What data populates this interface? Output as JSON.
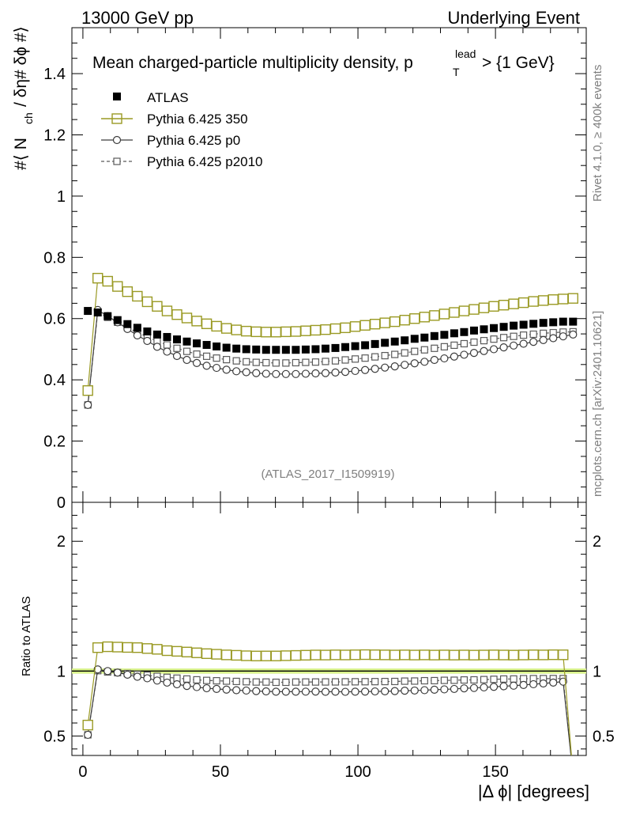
{
  "header": {
    "left": "13000 GeV pp",
    "right": "Underlying Event"
  },
  "side_labels": {
    "rivet": "Rivet 4.1.0, ≥ 400k events",
    "mcplots": "mcplots.cern.ch [arXiv:2401.10621]"
  },
  "chart_data": [
    {
      "type": "line",
      "panel": "main",
      "title_main": "Mean charged-particle multiplicity density, p",
      "title_sup": "lead",
      "title_sub": "T",
      "title_tail": "> {1 GeV}",
      "ylabel": "#⟨ N",
      "ylabel_sub": "ch",
      "ylabel_tail": "/ δη# δϕ #⟩",
      "watermark": "(ATLAS_2017_I1509919)",
      "xlim": [
        -4,
        183
      ],
      "ylim": [
        0,
        1.55
      ],
      "yticks": [
        0,
        0.2,
        0.4,
        0.6,
        0.8,
        1,
        1.2,
        1.4
      ],
      "ytick_labels": [
        "0",
        "0.2",
        "0.4",
        "0.6",
        "0.8",
        "1",
        "1.2",
        "1.4"
      ],
      "legend_position": "top-left",
      "x": [
        1.8,
        5.4,
        9.0,
        12.6,
        16.2,
        19.8,
        23.4,
        27.0,
        30.6,
        34.2,
        37.8,
        41.4,
        45.0,
        48.6,
        52.2,
        55.8,
        59.4,
        63.0,
        66.6,
        70.2,
        73.8,
        77.4,
        81.0,
        84.6,
        88.2,
        91.8,
        95.4,
        99.0,
        102.6,
        106.2,
        109.8,
        113.4,
        117.0,
        120.6,
        124.2,
        127.8,
        131.4,
        135.0,
        138.6,
        142.2,
        145.8,
        149.4,
        153.0,
        156.6,
        160.2,
        163.8,
        167.4,
        171.0,
        174.6,
        178.2
      ],
      "series": [
        {
          "name": "ATLAS",
          "style": "data",
          "color": "#000000",
          "values": [
            0.625,
            0.62,
            0.608,
            0.595,
            0.582,
            0.57,
            0.558,
            0.548,
            0.54,
            0.532,
            0.525,
            0.519,
            0.514,
            0.509,
            0.505,
            0.502,
            0.5,
            0.499,
            0.498,
            0.498,
            0.498,
            0.498,
            0.499,
            0.5,
            0.502,
            0.504,
            0.507,
            0.51,
            0.513,
            0.517,
            0.521,
            0.525,
            0.529,
            0.534,
            0.538,
            0.543,
            0.547,
            0.552,
            0.556,
            0.561,
            0.565,
            0.569,
            0.573,
            0.577,
            0.58,
            0.583,
            0.586,
            0.588,
            0.59,
            0.59
          ]
        },
        {
          "name": "Pythia 6.425 350",
          "style": "open-square",
          "color": "#9a9a24",
          "values": [
            0.365,
            0.732,
            0.722,
            0.705,
            0.688,
            0.673,
            0.655,
            0.64,
            0.625,
            0.613,
            0.602,
            0.592,
            0.583,
            0.575,
            0.568,
            0.563,
            0.559,
            0.557,
            0.556,
            0.556,
            0.557,
            0.558,
            0.56,
            0.562,
            0.564,
            0.567,
            0.57,
            0.574,
            0.578,
            0.582,
            0.586,
            0.59,
            0.595,
            0.6,
            0.605,
            0.61,
            0.615,
            0.62,
            0.625,
            0.63,
            0.635,
            0.64,
            0.644,
            0.648,
            0.652,
            0.656,
            0.659,
            0.662,
            0.664,
            0.666
          ]
        },
        {
          "name": "Pythia 6.425 p0",
          "style": "open-circle",
          "color": "#3c3c3c",
          "values": [
            0.318,
            0.628,
            0.608,
            0.588,
            0.566,
            0.545,
            0.527,
            0.508,
            0.492,
            0.478,
            0.465,
            0.455,
            0.446,
            0.439,
            0.433,
            0.428,
            0.425,
            0.422,
            0.42,
            0.419,
            0.419,
            0.419,
            0.42,
            0.421,
            0.422,
            0.424,
            0.426,
            0.429,
            0.432,
            0.436,
            0.44,
            0.444,
            0.449,
            0.454,
            0.459,
            0.465,
            0.47,
            0.476,
            0.482,
            0.488,
            0.494,
            0.5,
            0.506,
            0.512,
            0.518,
            0.524,
            0.53,
            0.536,
            0.542,
            0.548
          ]
        },
        {
          "name": "Pythia 6.425 p2010",
          "style": "dashed-square",
          "color": "#5a5a5a",
          "values": [
            0.318,
            0.622,
            0.604,
            0.588,
            0.571,
            0.555,
            0.54,
            0.526,
            0.514,
            0.503,
            0.493,
            0.484,
            0.477,
            0.471,
            0.466,
            0.462,
            0.459,
            0.457,
            0.456,
            0.455,
            0.455,
            0.456,
            0.457,
            0.458,
            0.46,
            0.462,
            0.465,
            0.468,
            0.471,
            0.475,
            0.479,
            0.483,
            0.488,
            0.493,
            0.498,
            0.503,
            0.508,
            0.513,
            0.518,
            0.523,
            0.528,
            0.533,
            0.538,
            0.542,
            0.546,
            0.549,
            0.552,
            0.554,
            0.556,
            0.557
          ]
        }
      ]
    },
    {
      "type": "line",
      "panel": "ratio",
      "ylabel": "Ratio to ATLAS",
      "xlabel": "|Δ ϕ| [degrees]",
      "xlim": [
        -4,
        183
      ],
      "ylim": [
        0.35,
        2.3
      ],
      "xticks": [
        0,
        50,
        100,
        150
      ],
      "xtick_labels": [
        "0",
        "50",
        "100",
        "150"
      ],
      "yticks": [
        0.5,
        1,
        2
      ],
      "ytick_labels": [
        "0.5",
        "1",
        "2"
      ],
      "band": [
        0.98,
        1.02
      ],
      "note": "ratios of each MC series to ATLAS; last bin of every series drops below axis"
    }
  ],
  "legend": [
    {
      "label": "ATLAS"
    },
    {
      "label": "Pythia 6.425 350"
    },
    {
      "label": "Pythia 6.425 p0"
    },
    {
      "label": "Pythia 6.425 p2010"
    }
  ]
}
